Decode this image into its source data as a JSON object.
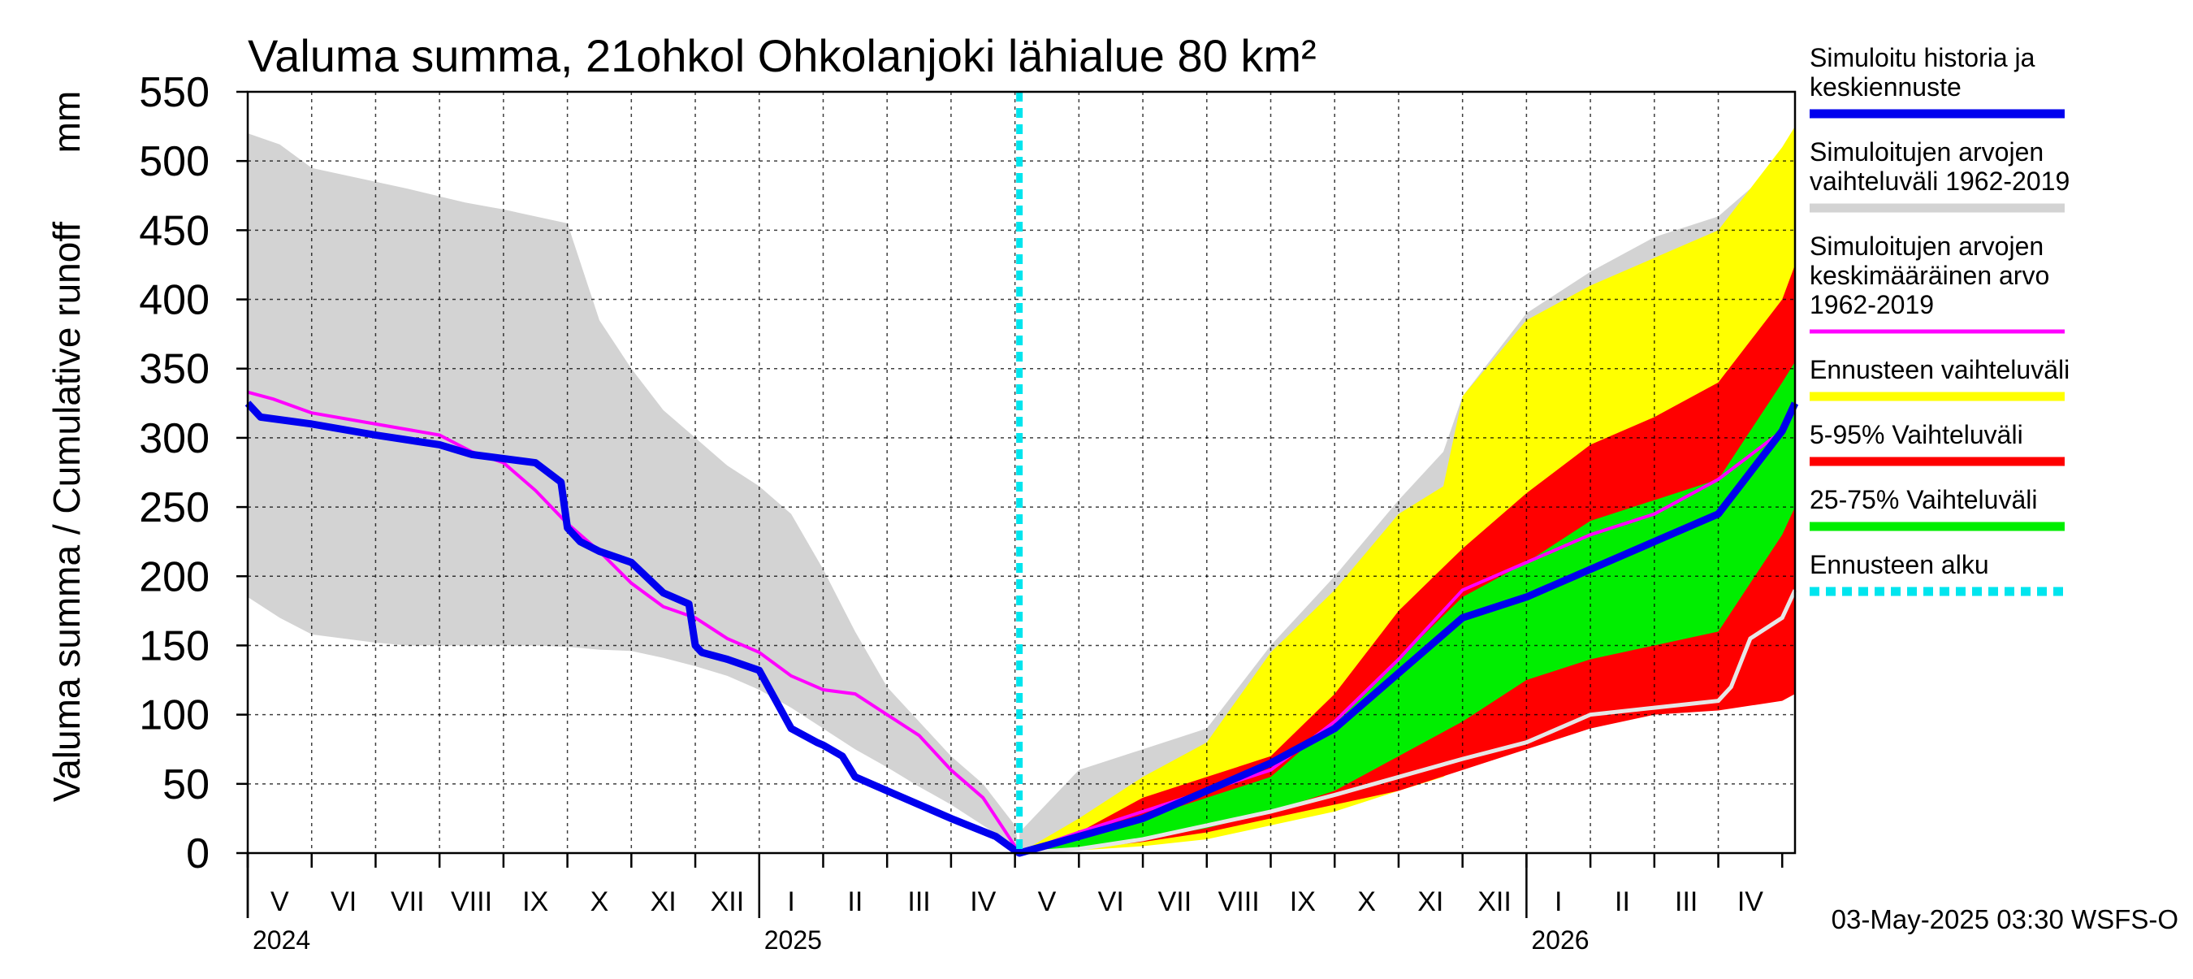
{
  "chart_data": {
    "type": "area",
    "title": "Valuma summa, 21ohkol Ohkolanjoki lähialue 80 km²",
    "ylabel": "Valuma summa / Cumulative runoff",
    "yunit": "mm",
    "ylim": [
      0,
      550
    ],
    "yticks": [
      "0",
      "50",
      "100",
      "150",
      "200",
      "250",
      "300",
      "350",
      "400",
      "450",
      "500",
      "550"
    ],
    "xlim": [
      0,
      24.2
    ],
    "months": [
      "V",
      "VI",
      "VII",
      "VIII",
      "IX",
      "X",
      "XI",
      "XII",
      "I",
      "II",
      "III",
      "IV",
      "V",
      "VI",
      "VII",
      "VIII",
      "IX",
      "X",
      "XI",
      "XII",
      "I",
      "II",
      "III",
      "IV"
    ],
    "years": [
      {
        "label": "2024",
        "x": 0
      },
      {
        "label": "2025",
        "x": 8
      },
      {
        "label": "2026",
        "x": 20
      }
    ],
    "forecast_start": 12.07,
    "history_range": {
      "x": [
        0,
        0.5,
        1,
        2,
        2.5,
        3.4,
        4,
        4.5,
        5,
        5.5,
        6,
        6.5,
        7,
        7.5,
        8,
        8.5,
        9,
        9.5,
        10,
        10.5,
        11,
        11.5,
        12,
        12.07
      ],
      "low": [
        185,
        170,
        158,
        152,
        150,
        150,
        150,
        150,
        149,
        147,
        146,
        141,
        135,
        128,
        118,
        105,
        90,
        75,
        62,
        48,
        35,
        20,
        5,
        0
      ],
      "high": [
        520,
        512,
        495,
        485,
        480,
        470,
        465,
        460,
        455,
        385,
        350,
        320,
        300,
        280,
        265,
        245,
        205,
        160,
        120,
        95,
        70,
        50,
        20,
        0
      ]
    },
    "future_range": {
      "x": [
        12.07,
        13,
        14,
        15,
        15.5,
        16,
        17,
        18,
        18.7,
        19,
        20,
        21,
        22,
        23,
        24,
        24.2
      ],
      "low": [
        0,
        3,
        8,
        15,
        20,
        28,
        38,
        50,
        60,
        70,
        85,
        95,
        105,
        115,
        140,
        150
      ],
      "high": [
        15,
        60,
        75,
        90,
        120,
        150,
        200,
        255,
        290,
        330,
        390,
        420,
        445,
        460,
        500,
        515
      ]
    },
    "series": [
      {
        "name": "Ennusteen vaihteluväli",
        "color": "#ffff00",
        "x": [
          12.07,
          13,
          14,
          15,
          16,
          17,
          18,
          18.7,
          19,
          20,
          21,
          22,
          23,
          24,
          24.2
        ],
        "low": [
          0,
          2,
          5,
          10,
          20,
          30,
          45,
          55,
          65,
          80,
          92,
          100,
          110,
          140,
          150
        ],
        "high": [
          0,
          25,
          55,
          80,
          145,
          190,
          245,
          265,
          330,
          385,
          410,
          430,
          450,
          510,
          525
        ]
      },
      {
        "name": "5-95% Vaihteluväli",
        "color": "#ff0000",
        "x": [
          12.07,
          13,
          14,
          15,
          16,
          17,
          18,
          19,
          20,
          21,
          22,
          23,
          24,
          24.2
        ],
        "low": [
          0,
          3,
          8,
          15,
          25,
          35,
          45,
          60,
          75,
          90,
          100,
          103,
          110,
          115
        ],
        "high": [
          0,
          15,
          40,
          55,
          70,
          115,
          175,
          220,
          260,
          295,
          315,
          340,
          400,
          425
        ]
      },
      {
        "name": "25-75% Vaihteluväli",
        "color": "#00ee00",
        "x": [
          12.07,
          13,
          14,
          15,
          16,
          17,
          18,
          19,
          20,
          21,
          22,
          23,
          24,
          24.2
        ],
        "low": [
          0,
          4,
          10,
          18,
          30,
          45,
          70,
          95,
          125,
          140,
          150,
          160,
          230,
          250
        ],
        "high": [
          0,
          10,
          25,
          40,
          55,
          95,
          140,
          185,
          210,
          240,
          255,
          270,
          340,
          355
        ]
      },
      {
        "name": "Simuloitujen arvojen keskimääräinen arvo 1962-2019",
        "color": "#ff00ff",
        "x": [
          0,
          0.4,
          1,
          2,
          3,
          3.5,
          4,
          4.5,
          5,
          5.5,
          6,
          6.5,
          7,
          7.5,
          8,
          8.5,
          9,
          9.5,
          10,
          10.5,
          11,
          11.5,
          12,
          12.07,
          13,
          14,
          15,
          16,
          17,
          18,
          19,
          20,
          21,
          22,
          23,
          24,
          24.2
        ],
        "y": [
          333,
          328,
          318,
          310,
          302,
          290,
          282,
          262,
          238,
          218,
          195,
          178,
          170,
          155,
          145,
          128,
          118,
          115,
          100,
          85,
          60,
          40,
          5,
          0,
          15,
          30,
          45,
          60,
          95,
          140,
          190,
          210,
          230,
          245,
          270,
          305,
          325
        ]
      },
      {
        "name": "Simuloitu historia ja keskiennuste",
        "color": "#0000ee",
        "x": [
          0,
          0.2,
          1,
          2,
          3,
          3.5,
          4.5,
          4.9,
          5,
          5.2,
          5.5,
          6,
          6.5,
          6.9,
          7,
          7.1,
          7.5,
          8,
          8.5,
          8.9,
          9,
          9.3,
          9.5,
          10,
          10.5,
          11,
          11.7,
          12,
          12.07,
          13,
          14,
          15,
          16,
          17,
          18,
          19,
          20,
          21,
          22,
          23,
          24,
          24.2
        ],
        "y": [
          325,
          315,
          310,
          302,
          295,
          288,
          282,
          268,
          235,
          225,
          218,
          210,
          188,
          180,
          150,
          145,
          140,
          132,
          90,
          80,
          78,
          70,
          55,
          45,
          35,
          25,
          12,
          2,
          0,
          12,
          25,
          45,
          65,
          90,
          130,
          170,
          185,
          205,
          225,
          245,
          305,
          325
        ]
      },
      {
        "name": "Simuloitujen arvojen vaihteluväli 1962-2019",
        "color": "#d3d3d3",
        "x": [
          12.07,
          13,
          14,
          15,
          16,
          17,
          18,
          19,
          20,
          21,
          22,
          23,
          23.2,
          23.5,
          24,
          24.2
        ],
        "y": [
          0,
          3,
          10,
          20,
          30,
          42,
          55,
          68,
          80,
          100,
          105,
          110,
          120,
          155,
          170,
          190
        ]
      }
    ]
  },
  "legend": [
    {
      "lines": [
        "Simuloitu historia ja",
        "keskiennuste"
      ],
      "color": "#0000ee",
      "style": "solid"
    },
    {
      "lines": [
        "Simuloitujen arvojen",
        "vaihteluväli 1962-2019"
      ],
      "color": "#d3d3d3",
      "style": "solid"
    },
    {
      "lines": [
        "Simuloitujen arvojen",
        "keskimääräinen arvo",
        "   1962-2019"
      ],
      "color": "#ff00ff",
      "style": "thin"
    },
    {
      "lines": [
        "Ennusteen vaihteluväli"
      ],
      "color": "#ffff00",
      "style": "solid"
    },
    {
      "lines": [
        "5-95% Vaihteluväli"
      ],
      "color": "#ff0000",
      "style": "solid"
    },
    {
      "lines": [
        "25-75% Vaihteluväli"
      ],
      "color": "#00ee00",
      "style": "solid"
    },
    {
      "lines": [
        "Ennusteen alku"
      ],
      "color": "#00e5ee",
      "style": "dashed"
    }
  ],
  "footer": "03-May-2025 03:30 WSFS-O"
}
